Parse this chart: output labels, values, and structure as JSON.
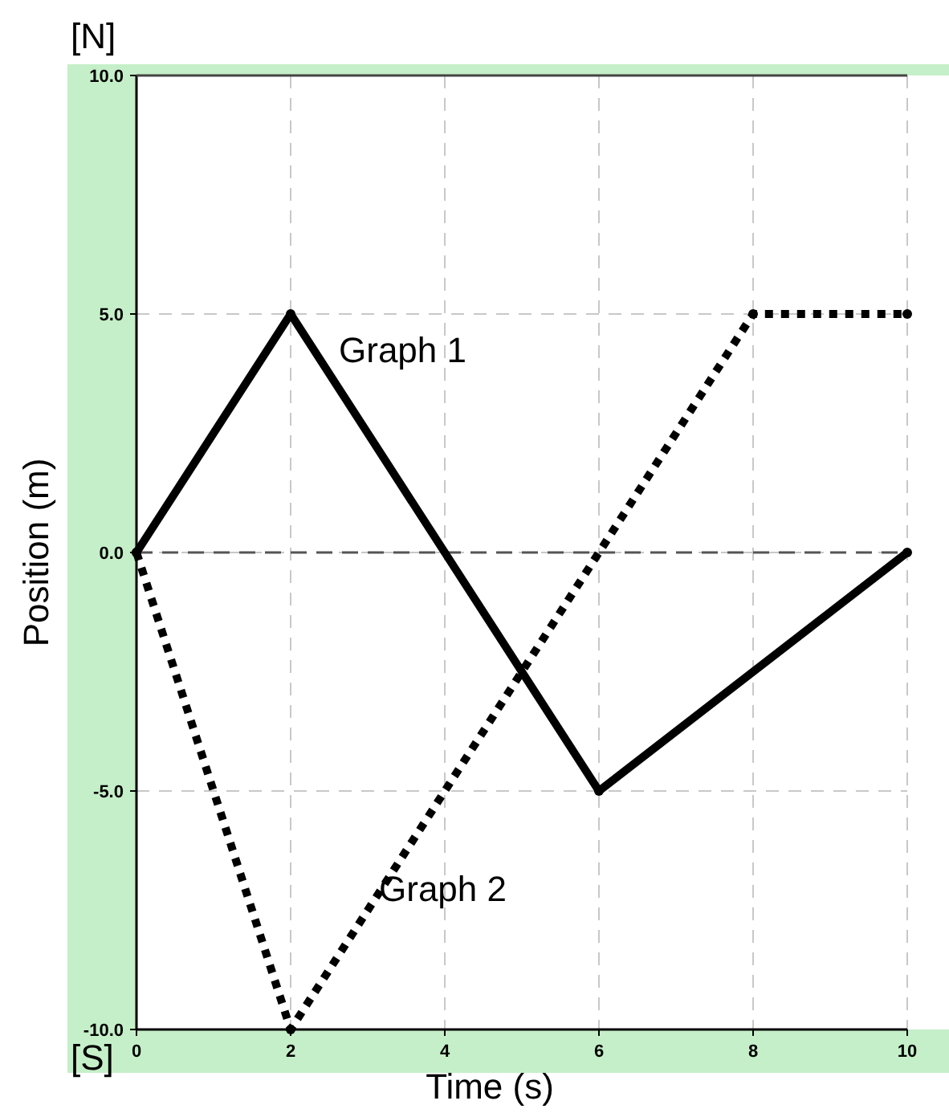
{
  "chart_data": {
    "type": "line",
    "xlabel": "Time (s)",
    "ylabel": "Position (m)",
    "xlim": [
      0,
      10
    ],
    "xticks": [
      0,
      2,
      4,
      6,
      8,
      10
    ],
    "ylim": [
      -10,
      10
    ],
    "yticks": [
      {
        "value": -10,
        "label": "-10.0"
      },
      {
        "value": -5,
        "label": "-5.0"
      },
      {
        "value": 0,
        "label": "0.0"
      },
      {
        "value": 5,
        "label": "5.0"
      },
      {
        "value": 10,
        "label": "10.0"
      }
    ],
    "grid": true,
    "legend": false,
    "marker": "circle",
    "series": [
      {
        "name": "Graph 1",
        "color": "#000000",
        "line_style": "solid",
        "x": [
          0,
          2,
          6,
          10
        ],
        "values": [
          0,
          5,
          -5,
          0
        ]
      },
      {
        "name": "Graph 2",
        "color": "#000000",
        "line_style": "dotted",
        "x": [
          0,
          2,
          8,
          10
        ],
        "values": [
          0,
          -10,
          5,
          5
        ]
      }
    ],
    "ref_lines": [
      {
        "axis": "y",
        "value": 0,
        "color": "#555555",
        "line_style": "dashed"
      }
    ],
    "annotations": [
      "[N]",
      "[S]"
    ]
  }
}
